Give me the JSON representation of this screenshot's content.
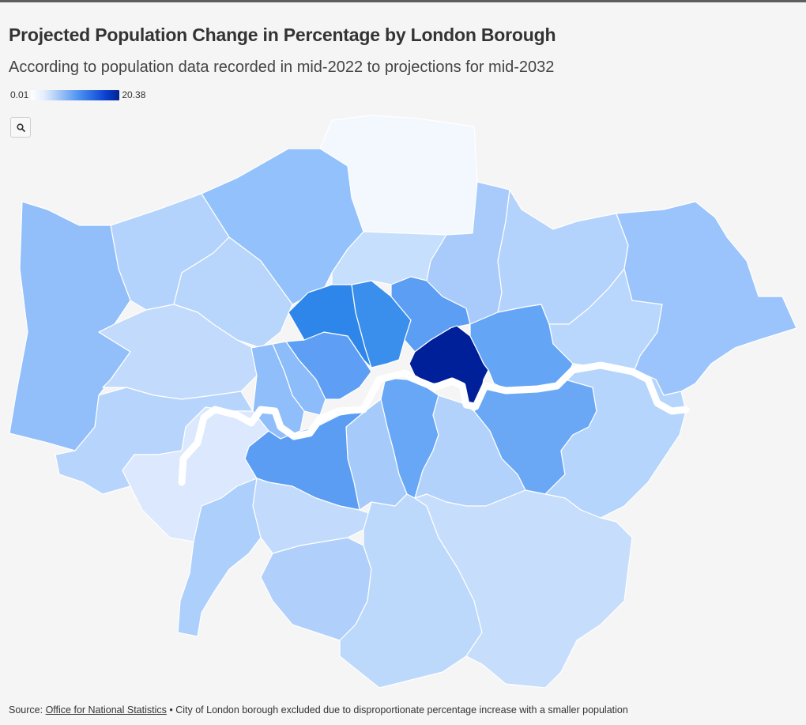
{
  "header": {
    "title": "Projected Population Change in Percentage by London Borough",
    "subtitle": "According to population data recorded in mid-2022 to projections for mid-2032"
  },
  "legend": {
    "min_label": "0.01",
    "max_label": "20.38"
  },
  "controls": {
    "zoom_icon": "search-icon"
  },
  "colors": {
    "background": "#f5f5f5",
    "river": "#ffffff",
    "scale_low": "#f3f8fe",
    "scale_high": "#002290"
  },
  "footer": {
    "source_prefix": "Source:",
    "source_link": "Office for National Statistics",
    "note": "• City of London borough excluded due to disproportionate percentage increase with a smaller population"
  }
}
